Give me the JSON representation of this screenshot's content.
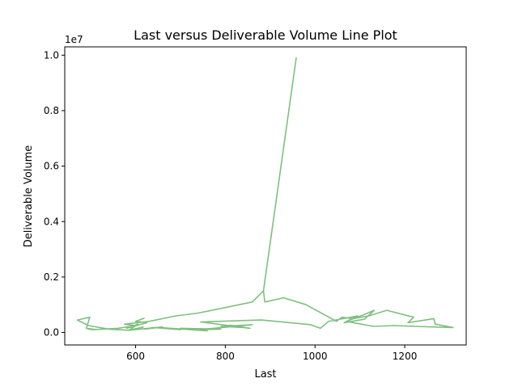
{
  "chart_data": {
    "type": "line",
    "title": "Last versus Deliverable Volume Line Plot",
    "xlabel": "Last",
    "ylabel": "Deliverable Volume",
    "y_offset_label": "1e7",
    "xlim": [
      442,
      1337
    ],
    "ylim": [
      -450000,
      10300000
    ],
    "x_ticks": [
      600,
      800,
      1000,
      1200
    ],
    "x_tick_labels": [
      "600",
      "800",
      "1000",
      "1200"
    ],
    "y_ticks": [
      0,
      2000000,
      4000000,
      6000000,
      8000000,
      10000000
    ],
    "y_tick_labels": [
      "0.0",
      "0.2",
      "0.4",
      "0.6",
      "0.8",
      "1.0"
    ],
    "grid": false,
    "legend": "none",
    "series": [
      {
        "color": "#7fbf7f",
        "x": [
          620,
          600,
          625,
          580,
          605,
          585,
          660,
          620,
          640,
          700,
          660,
          760,
          700,
          790,
          740,
          860,
          790,
          840,
          810,
          855,
          745,
          880,
          990,
          1012,
          1030,
          1095,
          1065,
          1110,
          1132,
          1110,
          1070,
          1130,
          1175,
          1225,
          1262,
          1308,
          1268,
          1265,
          1207,
          1220,
          1160,
          1120,
          1085,
          1060,
          1048,
          980,
          930,
          888,
          885,
          958,
          885,
          860,
          800,
          740,
          690,
          630,
          575,
          600,
          560,
          505,
          495,
          510,
          490,
          498,
          470,
          495,
          540,
          585,
          618
        ],
        "y": [
          520000,
          400000,
          350000,
          150000,
          300000,
          80000,
          200000,
          120000,
          180000,
          100000,
          170000,
          60000,
          150000,
          120000,
          100000,
          280000,
          220000,
          180000,
          260000,
          150000,
          380000,
          450000,
          280000,
          150000,
          400000,
          600000,
          350000,
          480000,
          800000,
          650000,
          400000,
          220000,
          250000,
          220000,
          200000,
          180000,
          300000,
          500000,
          350000,
          550000,
          800000,
          600000,
          500000,
          550000,
          400000,
          1000000,
          1250000,
          1100000,
          1500000,
          9900000,
          1500000,
          1100000,
          900000,
          700000,
          600000,
          400000,
          300000,
          250000,
          150000,
          100000,
          120000,
          110000,
          150000,
          550000,
          450000,
          250000,
          120000,
          80000,
          200000
        ]
      }
    ]
  }
}
